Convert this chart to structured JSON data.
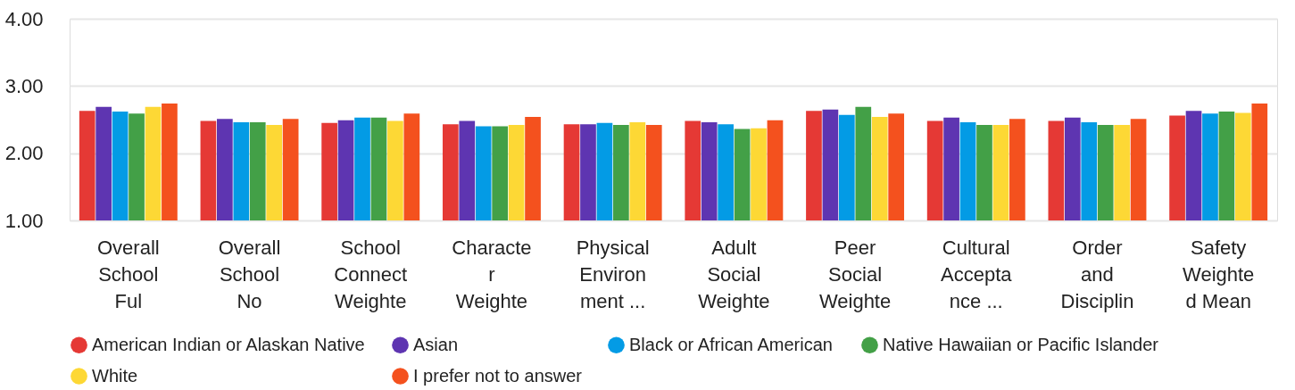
{
  "chart_data": {
    "type": "bar",
    "categories": [
      "Overall\nSchool\nFul",
      "Overall\nSchool\nNo",
      "School\nConnect\nWeighte",
      "Characte\nr\nWeighte",
      "Physical\nEnviron\nment ...",
      "Adult\nSocial\nWeighte",
      "Peer\nSocial\nWeighte",
      "Cultural\nAccepta\nnce ...",
      "Order\nand\nDisciplin",
      "Safety\nWeighte\nd Mean"
    ],
    "series": [
      {
        "name": "American Indian or Alaskan Native",
        "color": "#e53935",
        "values": [
          2.63,
          2.48,
          2.45,
          2.43,
          2.43,
          2.48,
          2.63,
          2.48,
          2.48,
          2.56
        ]
      },
      {
        "name": "Asian",
        "color": "#5e35b1",
        "values": [
          2.69,
          2.51,
          2.49,
          2.48,
          2.43,
          2.46,
          2.65,
          2.53,
          2.53,
          2.63
        ]
      },
      {
        "name": "Black or African American",
        "color": "#039be5",
        "values": [
          2.62,
          2.46,
          2.53,
          2.4,
          2.45,
          2.43,
          2.57,
          2.46,
          2.46,
          2.59
        ]
      },
      {
        "name": "Native Hawaiian or Pacific Islander",
        "color": "#43a047",
        "values": [
          2.59,
          2.46,
          2.53,
          2.4,
          2.42,
          2.36,
          2.69,
          2.42,
          2.42,
          2.62
        ]
      },
      {
        "name": "White",
        "color": "#fdd835",
        "values": [
          2.69,
          2.42,
          2.48,
          2.42,
          2.46,
          2.37,
          2.54,
          2.42,
          2.42,
          2.6
        ]
      },
      {
        "name": "I prefer not to answer",
        "color": "#f4511e",
        "values": [
          2.74,
          2.51,
          2.59,
          2.54,
          2.42,
          2.49,
          2.59,
          2.51,
          2.51,
          2.74
        ]
      }
    ],
    "ylim": [
      1,
      4
    ],
    "yticks": [
      {
        "value": 1,
        "label": "1.00"
      },
      {
        "value": 2,
        "label": "2.00"
      },
      {
        "value": 3,
        "label": "3.00"
      },
      {
        "value": 4,
        "label": "4.00"
      }
    ],
    "grid": "y",
    "legend": "bottom"
  }
}
